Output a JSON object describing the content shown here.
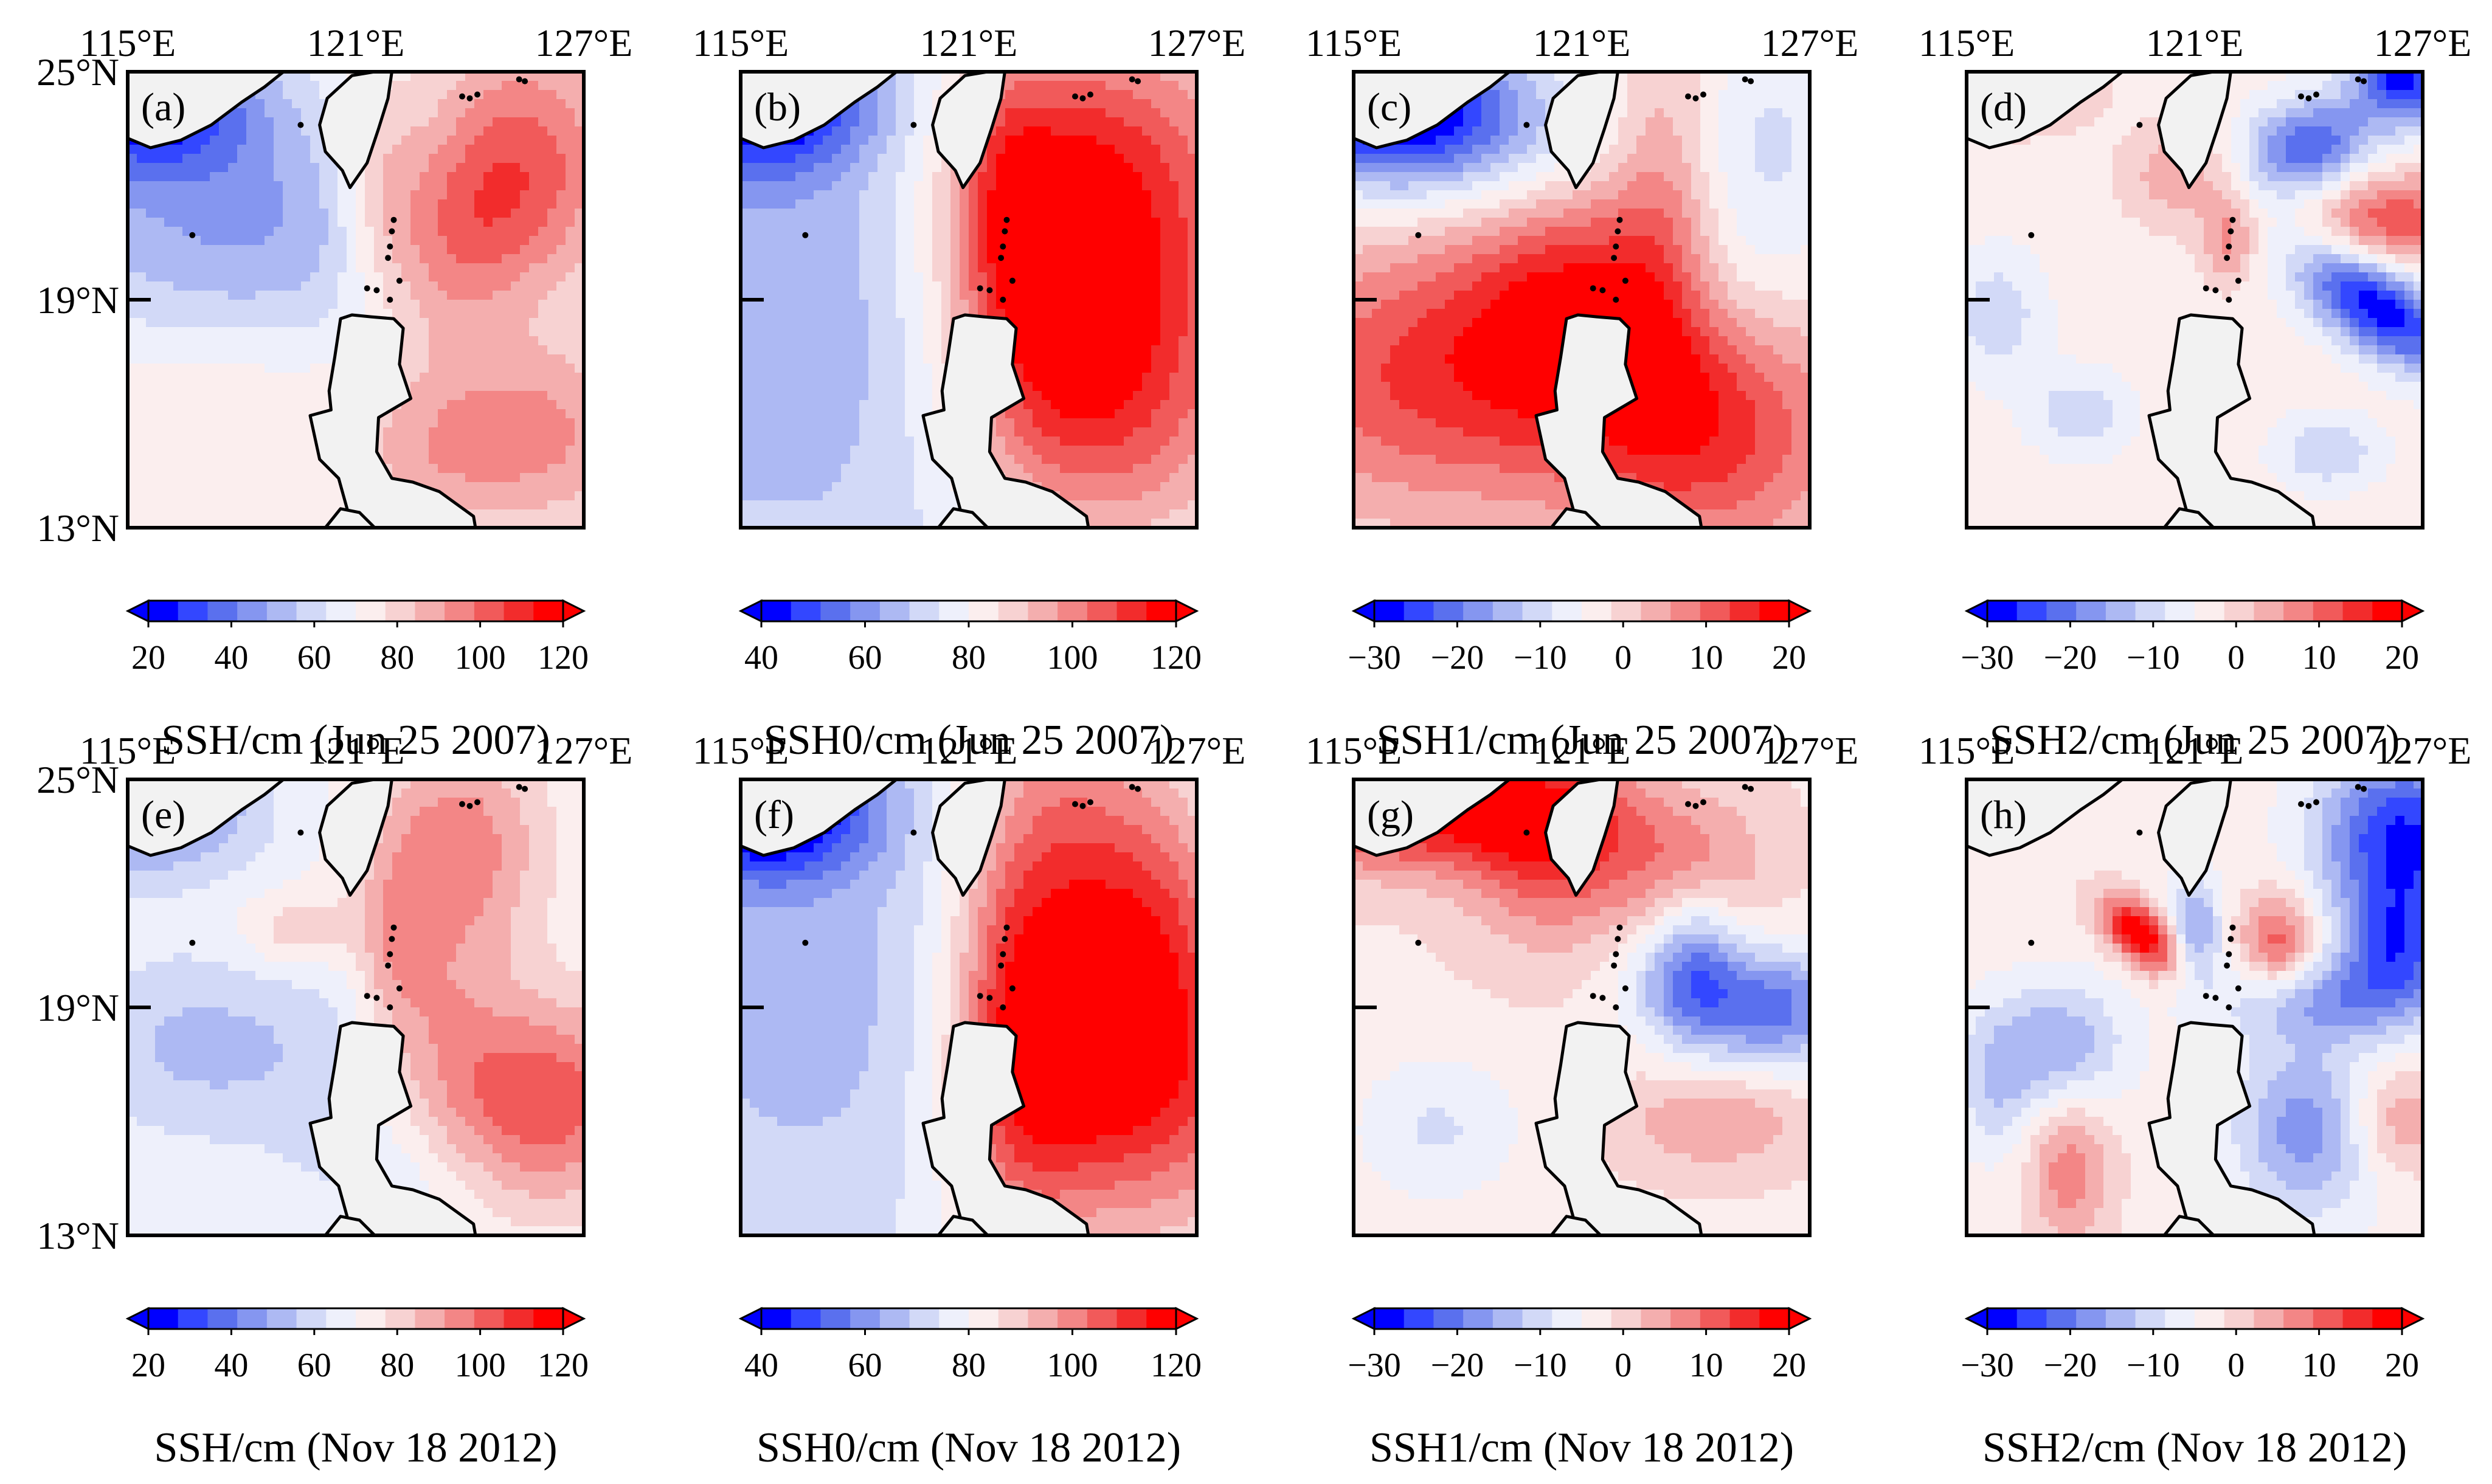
{
  "lon_ticks": [
    "115°E",
    "121°E",
    "127°E"
  ],
  "lat_ticks": [
    "25°N",
    "19°N",
    "13°N"
  ],
  "panels": [
    {
      "tag": "(a)",
      "caption": "SSH/cm (Jun 25 2007)",
      "cbar_ticks": [
        "20",
        "40",
        "60",
        "80",
        "100",
        "120"
      ],
      "vmin": 20,
      "vmax": 120,
      "pattern": "ssh_a"
    },
    {
      "tag": "(b)",
      "caption": "SSH0/cm (Jun 25 2007)",
      "cbar_ticks": [
        "40",
        "60",
        "80",
        "100",
        "120"
      ],
      "vmin": 40,
      "vmax": 120,
      "pattern": "ssh0_b"
    },
    {
      "tag": "(c)",
      "caption": "SSH1/cm (Jun 25 2007)",
      "cbar_ticks": [
        "−30",
        "−20",
        "−10",
        "0",
        "10",
        "20"
      ],
      "vmin": -30,
      "vmax": 20,
      "pattern": "ssh1_c"
    },
    {
      "tag": "(d)",
      "caption": "SSH2/cm (Jun 25 2007)",
      "cbar_ticks": [
        "−30",
        "−20",
        "−10",
        "0",
        "10",
        "20"
      ],
      "vmin": -30,
      "vmax": 20,
      "pattern": "ssh2_d"
    },
    {
      "tag": "(e)",
      "caption": "SSH/cm (Nov 18 2012)",
      "cbar_ticks": [
        "20",
        "40",
        "60",
        "80",
        "100",
        "120"
      ],
      "vmin": 20,
      "vmax": 120,
      "pattern": "ssh_e"
    },
    {
      "tag": "(f)",
      "caption": "SSH0/cm (Nov 18 2012)",
      "cbar_ticks": [
        "40",
        "60",
        "80",
        "100",
        "120"
      ],
      "vmin": 40,
      "vmax": 120,
      "pattern": "ssh0_f"
    },
    {
      "tag": "(g)",
      "caption": "SSH1/cm (Nov 18 2012)",
      "cbar_ticks": [
        "−30",
        "−20",
        "−10",
        "0",
        "10",
        "20"
      ],
      "vmin": -30,
      "vmax": 20,
      "pattern": "ssh1_g"
    },
    {
      "tag": "(h)",
      "caption": "SSH2/cm (Nov 18 2012)",
      "cbar_ticks": [
        "−30",
        "−20",
        "−10",
        "0",
        "10",
        "20"
      ],
      "vmin": -30,
      "vmax": 20,
      "pattern": "ssh2_h"
    }
  ],
  "colors": {
    "colormap": [
      "#0000ff",
      "#3347ff",
      "#5a70ee",
      "#8596f0",
      "#adb9f3",
      "#d2d9f7",
      "#eef0fb",
      "#fbeeee",
      "#f7d2d2",
      "#f4aeae",
      "#f38686",
      "#f15a5a",
      "#f22c2c",
      "#ff0000"
    ],
    "land": "#f2f2f2",
    "coast": "#000000",
    "frame": "#000000"
  }
}
